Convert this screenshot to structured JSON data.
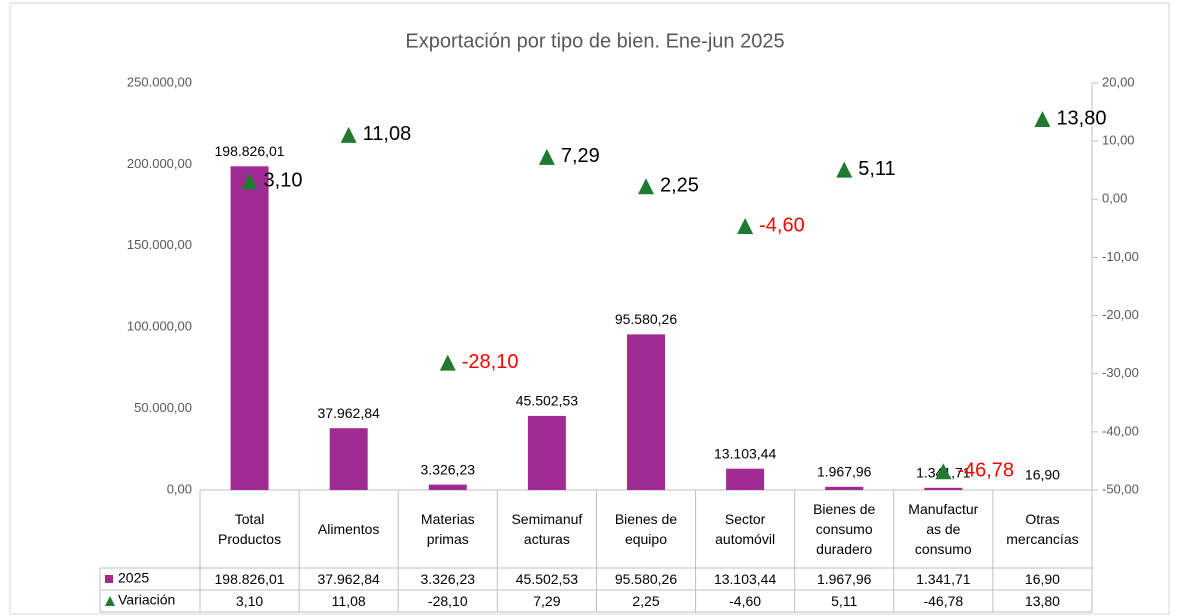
{
  "chart_data": {
    "type": "bar_line",
    "title": "Exportación por tipo de bien. Ene-jun 2025",
    "categories": [
      "Total\nProductos",
      "Alimentos",
      "Materias\nprimas",
      "Semimanuf\nacturas",
      "Bienes de\nequipo",
      "Sector\nautomóvil",
      "Bienes de\nconsumo\nduradero",
      "Manufactur\nas de\nconsumo",
      "Otras\nmercancías"
    ],
    "series": [
      {
        "name": "2025",
        "type": "bar",
        "color": "#a02b93",
        "values": [
          198826.01,
          37962.84,
          3326.23,
          45502.53,
          95580.26,
          13103.44,
          1967.96,
          1341.71,
          16.9
        ],
        "value_labels": [
          "198.826,01",
          "37.962,84",
          "3.326,23",
          "45.502,53",
          "95.580,26",
          "13.103,44",
          "1.967,96",
          "1.341,71",
          "16,90"
        ]
      },
      {
        "name": "Variación",
        "type": "marker",
        "axis": "y2",
        "color": "#1e7b30",
        "negative_label_color": "#ff0000",
        "values": [
          3.1,
          11.08,
          -28.1,
          7.29,
          2.25,
          -4.6,
          5.11,
          -46.78,
          13.8
        ],
        "value_labels": [
          "3,10",
          "11,08",
          "-28,10",
          "7,29",
          "2,25",
          "-4,60",
          "5,11",
          "-46,78",
          "13,80"
        ]
      }
    ],
    "ylim": [
      0,
      250000
    ],
    "yticks": [
      {
        "value": 0,
        "label": "0,00"
      },
      {
        "value": 50000,
        "label": "50.000,00"
      },
      {
        "value": 100000,
        "label": "100.000,00"
      },
      {
        "value": 150000,
        "label": "150.000,00"
      },
      {
        "value": 200000,
        "label": "200.000,00"
      },
      {
        "value": 250000,
        "label": "250.000,00"
      }
    ],
    "y2lim": [
      -50,
      20
    ],
    "y2ticks": [
      {
        "value": -50,
        "label": "-50,00"
      },
      {
        "value": -40,
        "label": "-40,00"
      },
      {
        "value": -30,
        "label": "-30,00"
      },
      {
        "value": -20,
        "label": "-20,00"
      },
      {
        "value": -10,
        "label": "-10,00"
      },
      {
        "value": 0,
        "label": "0,00"
      },
      {
        "value": 10,
        "label": "10,00"
      },
      {
        "value": 20,
        "label": "20,00"
      }
    ],
    "data_table": true
  }
}
